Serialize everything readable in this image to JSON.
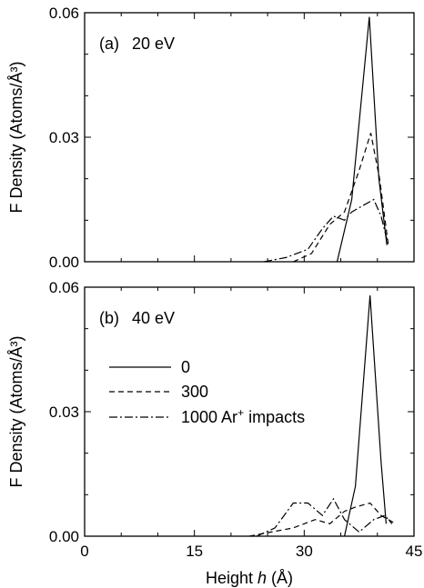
{
  "chart_data": [
    {
      "type": "line",
      "panel_label": "(a)",
      "energy_label": "20 eV",
      "ylabel": "F Density (Atoms/Å³)",
      "xlim": [
        0,
        45
      ],
      "ylim": [
        0,
        0.06
      ],
      "x_ticks": [
        "0",
        "15",
        "30",
        "45"
      ],
      "y_ticks": [
        "0.00",
        "0.03",
        "0.06"
      ],
      "series": [
        {
          "style": "solid",
          "x": [
            34.5,
            36.5,
            38.9,
            40.2,
            41.3
          ],
          "y": [
            0.0,
            0.015,
            0.059,
            0.02,
            0.004
          ]
        },
        {
          "style": "dashed",
          "x": [
            28.5,
            31.0,
            33.5,
            35.5,
            37.5,
            39.1,
            40.3,
            41.5
          ],
          "y": [
            0.0,
            0.002,
            0.009,
            0.012,
            0.022,
            0.031,
            0.02,
            0.004
          ]
        },
        {
          "style": "dashdot",
          "x": [
            24.5,
            27.5,
            30.5,
            32.5,
            34.0,
            35.5,
            36.5,
            37.5,
            39.5,
            40.5,
            41.5
          ],
          "y": [
            0.0,
            0.001,
            0.003,
            0.008,
            0.011,
            0.01,
            0.012,
            0.013,
            0.015,
            0.011,
            0.004
          ]
        }
      ]
    },
    {
      "type": "line",
      "panel_label": "(b)",
      "energy_label": "40 eV",
      "ylabel": "F Density (Atoms/Å³)",
      "xlabel_prefix": "Height ",
      "xlabel_var": "h",
      "xlabel_unit": " (Å)",
      "xlim": [
        0,
        45
      ],
      "ylim": [
        0,
        0.06
      ],
      "x_ticks": [
        "0",
        "15",
        "30",
        "45"
      ],
      "y_ticks": [
        "0.00",
        "0.03",
        "0.06"
      ],
      "legend": {
        "placement": "middle-left",
        "entries": [
          {
            "style": "solid",
            "label": "0"
          },
          {
            "style": "dashed",
            "label": "300"
          },
          {
            "style": "dashdot",
            "label_main": "1000 Ar",
            "label_sup": "+",
            "label_rest": " impacts"
          }
        ]
      },
      "series": [
        {
          "style": "solid",
          "x": [
            35.5,
            37.0,
            39.0,
            40.5,
            41.2
          ],
          "y": [
            0.0,
            0.012,
            0.058,
            0.018,
            0.003
          ]
        },
        {
          "style": "dashed",
          "x": [
            22.5,
            25.5,
            28.5,
            31.5,
            33.5,
            35.5,
            37.0,
            39.0,
            40.5,
            42.5
          ],
          "y": [
            0.0,
            0.001,
            0.002,
            0.004,
            0.003,
            0.006,
            0.007,
            0.008,
            0.005,
            0.003
          ]
        },
        {
          "style": "dashdot",
          "x": [
            23.5,
            26.0,
            28.5,
            30.5,
            32.5,
            34.0,
            35.5,
            37.5,
            39.5,
            41.0,
            42.0
          ],
          "y": [
            0.0,
            0.002,
            0.008,
            0.008,
            0.005,
            0.009,
            0.004,
            0.001,
            0.004,
            0.005,
            0.003
          ]
        }
      ]
    }
  ]
}
